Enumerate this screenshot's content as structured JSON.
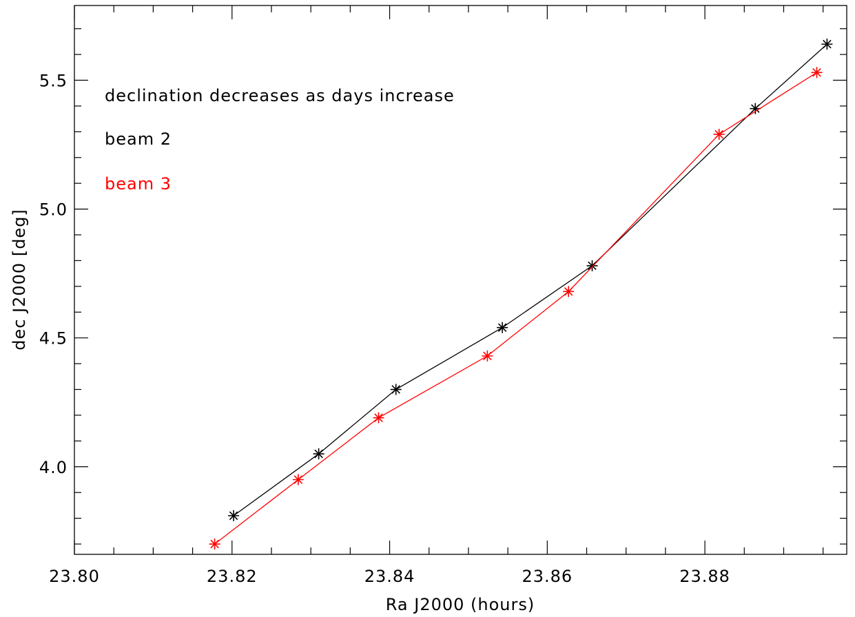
{
  "chart_data": {
    "type": "line",
    "title": "",
    "xlabel": "Ra J2000 (hours)",
    "ylabel": "dec J2000 [deg]",
    "xlim": [
      23.8,
      23.898
    ],
    "ylim": [
      3.66,
      5.79
    ],
    "x_ticks": [
      "23.80",
      "23.82",
      "23.84",
      "23.86",
      "23.88"
    ],
    "y_ticks": [
      "4.0",
      "4.5",
      "5.0",
      "5.5"
    ],
    "grid": false,
    "annotations": [
      {
        "text": "declination decreases as days increase",
        "color": "#000000"
      }
    ],
    "series": [
      {
        "name": "beam 2",
        "color": "#000000",
        "marker": "asterisk",
        "x": [
          23.8202,
          23.831,
          23.8408,
          23.8543,
          23.8657,
          23.8864,
          23.8955
        ],
        "y": [
          3.81,
          4.05,
          4.3,
          4.54,
          4.78,
          5.39,
          5.64
        ]
      },
      {
        "name": "beam 3",
        "color": "#ff0000",
        "marker": "asterisk",
        "x": [
          23.8178,
          23.8284,
          23.8386,
          23.8524,
          23.8627,
          23.8818,
          23.8942
        ],
        "y": [
          3.7,
          3.95,
          4.19,
          4.43,
          4.68,
          5.29,
          5.53
        ]
      }
    ]
  }
}
